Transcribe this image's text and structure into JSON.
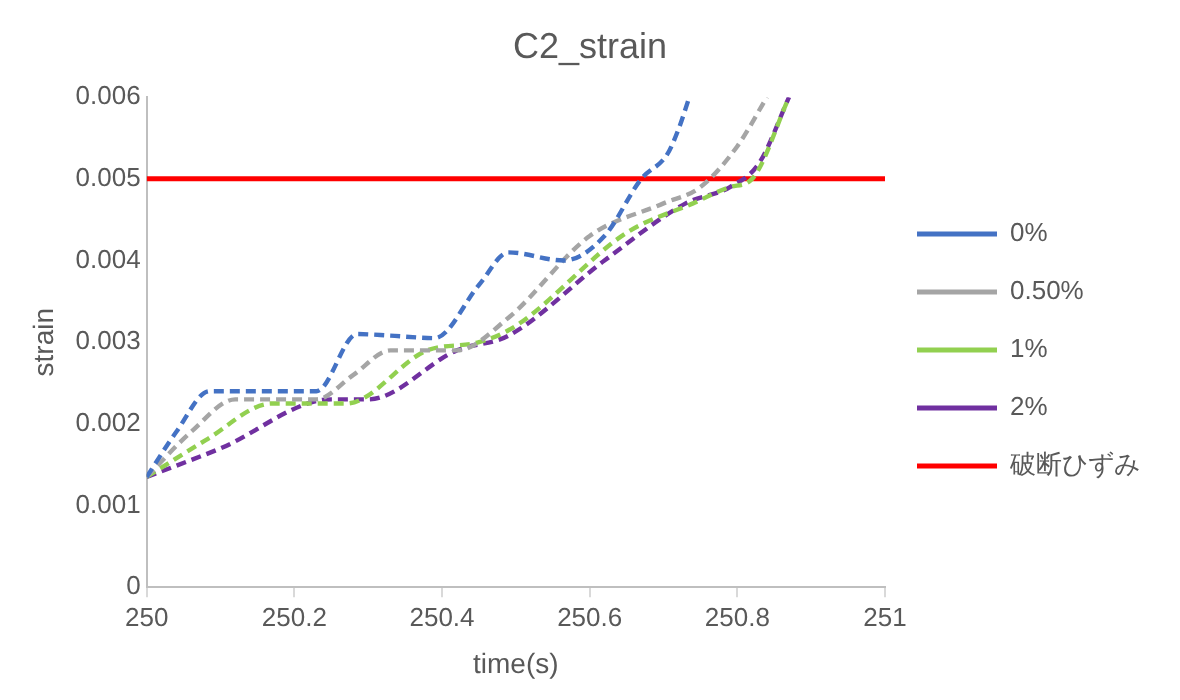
{
  "chart_data": {
    "type": "line",
    "title": "C2_strain",
    "xlabel": "time(s)",
    "ylabel": "strain",
    "xlim": [
      250,
      251
    ],
    "xticks": [
      250,
      250.2,
      250.4,
      250.6,
      250.8,
      251
    ],
    "ylim": [
      0,
      0.006
    ],
    "yticks": [
      0,
      0.001,
      0.002,
      0.003,
      0.004,
      0.005,
      0.006
    ],
    "grid": false,
    "legend": "right",
    "marker": "none",
    "line_style": "dashed",
    "series": [
      {
        "name": "0%",
        "color": "#4472c4",
        "x": [
          250,
          250.04,
          250.085,
          250.15,
          250.23,
          250.285,
          250.33,
          250.39,
          250.45,
          250.49,
          250.565,
          250.62,
          250.67,
          250.705,
          250.72,
          250.735
        ],
        "values": [
          0.00135,
          0.0019,
          0.0024,
          0.0024,
          0.0024,
          0.0031,
          0.00308,
          0.00305,
          0.0037,
          0.0041,
          0.004,
          0.0043,
          0.005,
          0.0053,
          0.0056,
          0.006
        ]
      },
      {
        "name": "0.50%",
        "color": "#a5a5a5",
        "x": [
          250,
          250.06,
          250.12,
          250.23,
          250.28,
          250.33,
          250.42,
          250.49,
          250.6,
          250.7,
          250.75,
          250.8,
          250.84
        ],
        "values": [
          0.00135,
          0.0019,
          0.0023,
          0.0023,
          0.0026,
          0.0029,
          0.0029,
          0.0033,
          0.0043,
          0.0047,
          0.0049,
          0.0054,
          0.006
        ]
      },
      {
        "name": "1%",
        "color": "#92d050",
        "x": [
          250,
          250.08,
          250.17,
          250.27,
          250.38,
          250.45,
          250.5,
          250.65,
          250.74,
          250.79,
          250.82,
          250.87
        ],
        "values": [
          0.00135,
          0.0018,
          0.00225,
          0.00225,
          0.0029,
          0.003,
          0.0032,
          0.00434,
          0.0047,
          0.0049,
          0.005,
          0.006
        ]
      },
      {
        "name": "2%",
        "color": "#7030a0",
        "x": [
          250,
          250.1,
          250.25,
          250.3,
          250.42,
          250.49,
          250.62,
          250.73,
          250.79,
          250.83,
          250.87
        ],
        "values": [
          0.00135,
          0.0017,
          0.0023,
          0.0023,
          0.0029,
          0.00308,
          0.004,
          0.0047,
          0.0049,
          0.0052,
          0.006
        ]
      }
    ],
    "ref_lines": [
      {
        "axis": "y",
        "value": 0.005,
        "label": "破断ひずみ",
        "color": "#ff0000",
        "line_style": "solid"
      }
    ]
  }
}
